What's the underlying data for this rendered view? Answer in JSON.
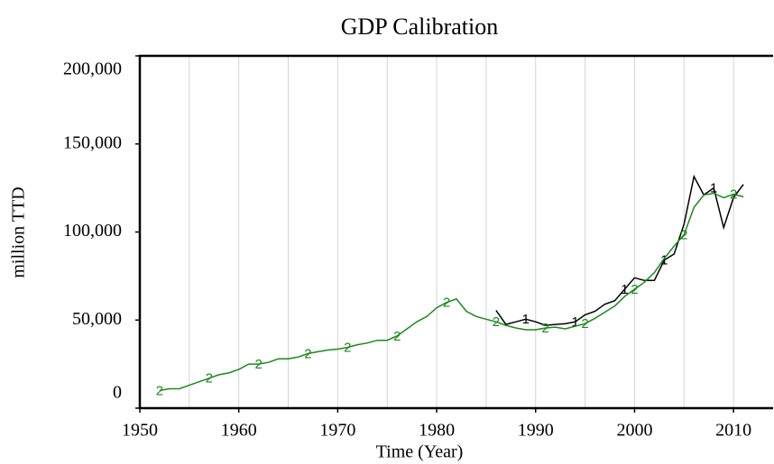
{
  "chart_data": {
    "type": "line",
    "title": "GDP Calibration",
    "x_label": "Time (Year)",
    "y_label": "million TTD",
    "x": [
      1952,
      1953,
      1954,
      1955,
      1956,
      1957,
      1958,
      1959,
      1960,
      1961,
      1962,
      1963,
      1964,
      1965,
      1966,
      1967,
      1968,
      1969,
      1970,
      1971,
      1972,
      1973,
      1974,
      1975,
      1976,
      1977,
      1978,
      1979,
      1980,
      1981,
      1982,
      1983,
      1984,
      1985,
      1986,
      1987,
      1988,
      1989,
      1990,
      1991,
      1992,
      1993,
      1994,
      1995,
      1996,
      1997,
      1998,
      1999,
      2000,
      2001,
      2002,
      2003,
      2004,
      2005,
      2006,
      2007,
      2008,
      2009,
      2010,
      2011
    ],
    "series": [
      {
        "name": "1",
        "color": "#000000",
        "values": [
          null,
          null,
          null,
          null,
          null,
          null,
          null,
          null,
          null,
          null,
          null,
          null,
          null,
          null,
          null,
          null,
          null,
          null,
          null,
          null,
          null,
          null,
          null,
          null,
          null,
          null,
          null,
          null,
          null,
          null,
          null,
          null,
          null,
          null,
          55500,
          47500,
          49000,
          50500,
          49000,
          47000,
          47500,
          48000,
          49000,
          53000,
          55000,
          59000,
          61000,
          67500,
          74000,
          72500,
          72500,
          84000,
          87500,
          104500,
          131500,
          121000,
          125000,
          102500,
          119500,
          127000
        ]
      },
      {
        "name": "2",
        "color": "#1a8a1a",
        "values": [
          10000,
          11000,
          11000,
          13000,
          15000,
          17000,
          19000,
          20000,
          22000,
          25000,
          25000,
          26000,
          28000,
          28000,
          29000,
          31000,
          32000,
          33000,
          33500,
          34500,
          36000,
          37000,
          38500,
          38500,
          41000,
          45000,
          49000,
          52000,
          57000,
          60000,
          62000,
          55000,
          52000,
          50500,
          49000,
          47000,
          45500,
          44500,
          44500,
          45500,
          46000,
          45000,
          46500,
          48000,
          51000,
          54500,
          58000,
          63500,
          67500,
          71500,
          77000,
          85000,
          92000,
          98500,
          114000,
          121000,
          122000,
          119500,
          121500,
          120000
        ]
      }
    ],
    "xlim": [
      1950,
      2014
    ],
    "xticks": [
      1950,
      1960,
      1970,
      1980,
      1990,
      2000,
      2010
    ],
    "ylim": [
      0,
      200000
    ],
    "yticks": [
      0,
      {
        "value": 50000,
        "label": "50,000"
      },
      {
        "value": 100000,
        "label": "100,000"
      },
      {
        "value": 150000,
        "label": "150,000"
      },
      {
        "value": 200000,
        "label": "200,000"
      }
    ],
    "grid": true
  }
}
